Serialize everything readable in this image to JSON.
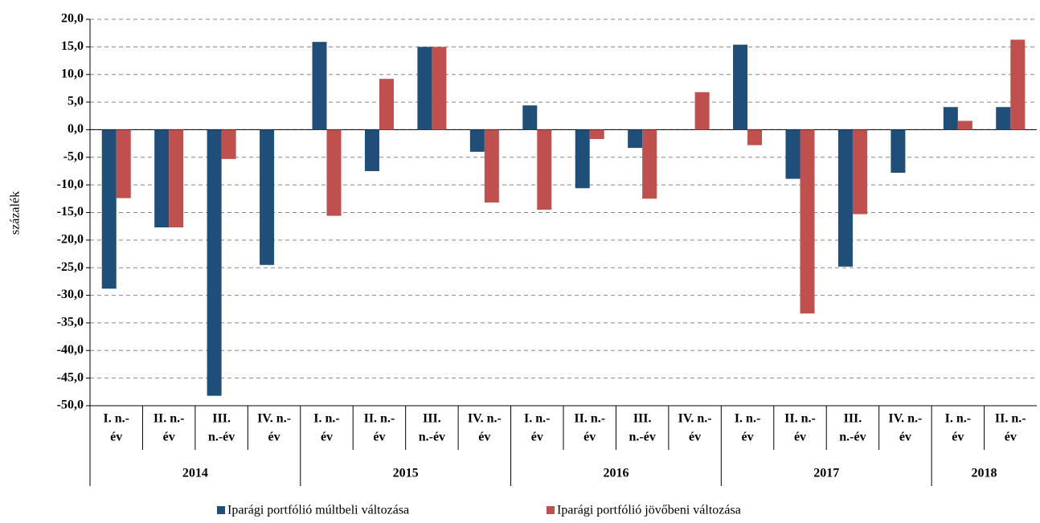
{
  "chart_data": {
    "type": "bar",
    "y_label": "százalék",
    "groups": [
      {
        "label": "2014",
        "categories": [
          [
            "I. n.-",
            "év"
          ],
          [
            "II. n.-",
            "év"
          ],
          [
            "III.",
            "n.-év"
          ],
          [
            "IV. n.-",
            "év"
          ]
        ]
      },
      {
        "label": "2015",
        "categories": [
          [
            "I. n.-",
            "év"
          ],
          [
            "II. n.-",
            "év"
          ],
          [
            "III.",
            "n.-év"
          ],
          [
            "IV. n.-",
            "év"
          ]
        ]
      },
      {
        "label": "2016",
        "categories": [
          [
            "I. n.-",
            "év"
          ],
          [
            "II. n.-",
            "év"
          ],
          [
            "III.",
            "n.-év"
          ],
          [
            "IV. n.-",
            "év"
          ]
        ]
      },
      {
        "label": "2017",
        "categories": [
          [
            "I. n.-",
            "év"
          ],
          [
            "II. n.-",
            "év"
          ],
          [
            "III.",
            "n.-év"
          ],
          [
            "IV. n.-",
            "év"
          ]
        ]
      },
      {
        "label": "2018",
        "categories": [
          [
            "I. n.-",
            "év"
          ],
          [
            "II. n.-",
            "év"
          ]
        ]
      }
    ],
    "series": [
      {
        "name": "Iparági portfólió múltbeli változása",
        "color": "#1f4e79",
        "values": [
          -28.8,
          -17.7,
          -48.2,
          -24.5,
          15.9,
          -7.5,
          15.0,
          -4.0,
          4.4,
          -10.6,
          -3.3,
          0,
          15.4,
          -8.9,
          -24.8,
          -7.8,
          4.1,
          4.1
        ]
      },
      {
        "name": "Iparági portfólió jövőbeni változása",
        "color": "#c0504d",
        "values": [
          -12.4,
          -17.7,
          -5.3,
          null,
          -15.6,
          9.2,
          15.0,
          -13.2,
          -14.5,
          -1.7,
          -12.5,
          6.8,
          -2.8,
          -33.3,
          -15.3,
          0,
          1.6,
          16.3
        ]
      }
    ],
    "ylim": [
      -50,
      20
    ],
    "yticks": [
      {
        "value": -50,
        "label": "-50,0"
      },
      {
        "value": -45,
        "label": "-45,0"
      },
      {
        "value": -40,
        "label": "-40,0"
      },
      {
        "value": -35,
        "label": "-35,0"
      },
      {
        "value": -30,
        "label": "-30,0"
      },
      {
        "value": -25,
        "label": "-25,0"
      },
      {
        "value": -20,
        "label": "-20,0"
      },
      {
        "value": -15,
        "label": "-15,0"
      },
      {
        "value": -10,
        "label": "-10,0"
      },
      {
        "value": -5,
        "label": "-5,0"
      },
      {
        "value": 0,
        "label": "0,0"
      },
      {
        "value": 5,
        "label": "5,0"
      },
      {
        "value": 10,
        "label": "10,0"
      },
      {
        "value": 15,
        "label": "15,0"
      },
      {
        "value": 20,
        "label": "20,0"
      }
    ],
    "grid": true
  }
}
